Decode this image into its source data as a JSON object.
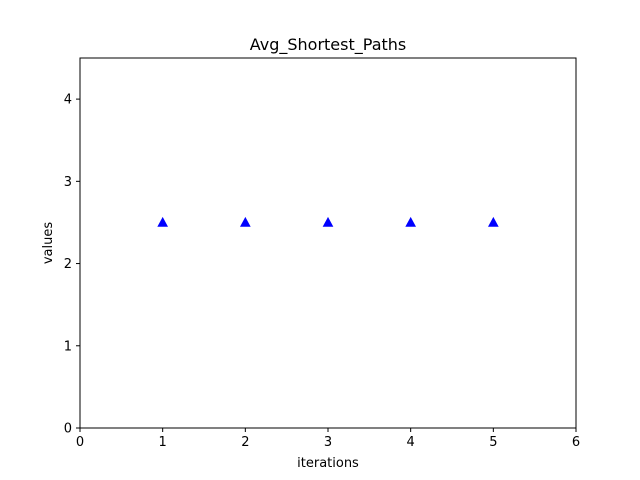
{
  "chart_data": {
    "type": "scatter",
    "title": "Avg_Shortest_Paths",
    "xlabel": "iterations",
    "ylabel": "values",
    "xlim": [
      0,
      6
    ],
    "ylim": [
      0,
      4.5
    ],
    "x_ticks": [
      "0",
      "1",
      "2",
      "3",
      "4",
      "5",
      "6"
    ],
    "y_ticks": [
      "0",
      "1",
      "2",
      "3",
      "4"
    ],
    "grid": false,
    "marker": "triangle-up",
    "color": "#0000ff",
    "x": [
      1,
      2,
      3,
      4,
      5
    ],
    "y": [
      2.5,
      2.5,
      2.5,
      2.5,
      2.5
    ]
  }
}
